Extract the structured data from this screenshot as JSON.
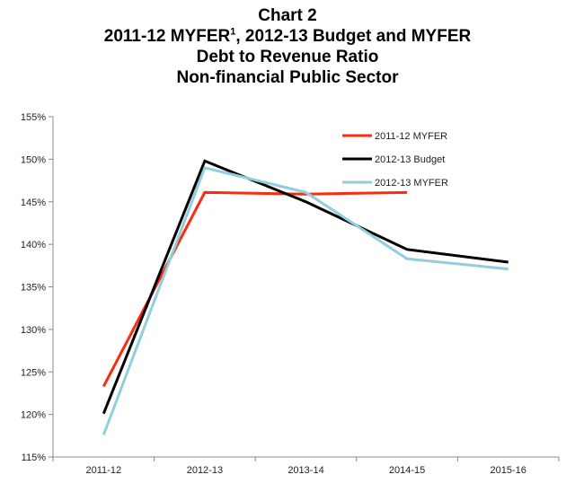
{
  "chart_data": {
    "type": "line",
    "title_lines": [
      "Chart 2",
      "2011-12 MYFER",
      "1",
      ", 2012-13 Budget and MYFER",
      "Debt to Revenue Ratio",
      "Non-financial Public Sector"
    ],
    "categories": [
      "2011-12",
      "2012-13",
      "2013-14",
      "2014-15",
      "2015-16"
    ],
    "y_ticks": [
      "115%",
      "120%",
      "125%",
      "130%",
      "135%",
      "140%",
      "145%",
      "150%",
      "155%"
    ],
    "ylim": [
      115,
      155
    ],
    "y_step": 5,
    "xlabel": "",
    "ylabel": "",
    "legend_position": "top-right",
    "series": [
      {
        "name": "2011-12 MYFER",
        "color": "#ff2a0e",
        "values": [
          123.3,
          146.1,
          145.9,
          146.1,
          null
        ]
      },
      {
        "name": "2012-13 Budget",
        "color": "#000000",
        "values": [
          120.1,
          149.8,
          145.0,
          139.4,
          137.9
        ]
      },
      {
        "name": "2012-13 MYFER",
        "color": "#93cddd",
        "values": [
          117.6,
          149.0,
          146.1,
          138.3,
          137.1
        ]
      }
    ]
  }
}
